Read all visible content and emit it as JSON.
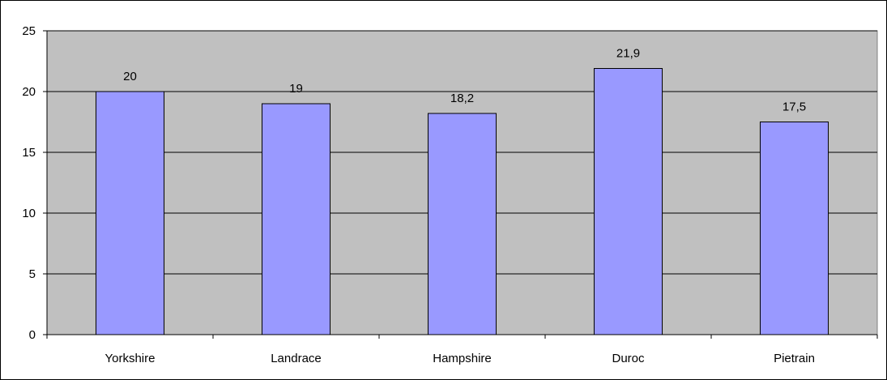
{
  "chart_data": {
    "type": "bar",
    "categories": [
      "Yorkshire",
      "Landrace",
      "Hampshire",
      "Duroc",
      "Pietrain"
    ],
    "values": [
      20,
      19,
      18.2,
      21.9,
      17.5
    ],
    "value_labels": [
      "20",
      "19",
      "18,2",
      "21,9",
      "17,5"
    ],
    "yticks": [
      0,
      5,
      10,
      15,
      20,
      25
    ],
    "ylim": [
      0,
      25
    ],
    "grid": true,
    "legend": "none",
    "colors": {
      "bar_fill": "#9999ff",
      "plot_background": "#c0c0c0",
      "gridline": "#000000",
      "bar_stroke": "#000000"
    }
  }
}
